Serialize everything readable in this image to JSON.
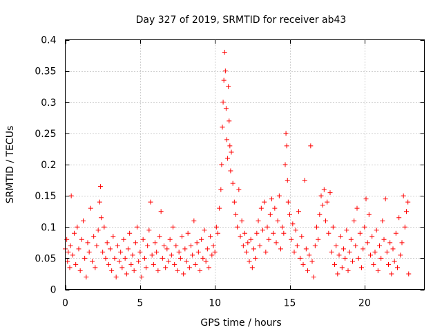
{
  "chart_data": {
    "type": "scatter",
    "title": "Day 327 of 2019, SRMTID for receiver ab43",
    "xlabel": "GPS time / hours",
    "ylabel": "SRMTID / TECUs",
    "xlim": [
      0,
      24
    ],
    "ylim": [
      0,
      0.4
    ],
    "x_ticks": [
      0,
      5,
      10,
      15,
      20
    ],
    "x_tick_labels": [
      "0",
      "5",
      "10",
      "15",
      "20"
    ],
    "y_ticks": [
      0,
      0.05,
      0.1,
      0.15,
      0.2,
      0.25,
      0.3,
      0.35,
      0.4
    ],
    "y_tick_labels": [
      "0",
      "0.05",
      "0.1",
      "0.15",
      "0.2",
      "0.25",
      "0.3",
      "0.35",
      "0.4"
    ],
    "grid": true,
    "marker": "+",
    "color": "#ff0000",
    "series": [
      {
        "name": "SRMTID",
        "points": [
          [
            0.0,
            0.065
          ],
          [
            0.1,
            0.08
          ],
          [
            0.15,
            0.045
          ],
          [
            0.2,
            0.06
          ],
          [
            0.3,
            0.035
          ],
          [
            0.35,
            0.07
          ],
          [
            0.4,
            0.15
          ],
          [
            0.5,
            0.055
          ],
          [
            0.6,
            0.09
          ],
          [
            0.7,
            0.04
          ],
          [
            0.8,
            0.1
          ],
          [
            0.9,
            0.065
          ],
          [
            1.0,
            0.03
          ],
          [
            1.1,
            0.08
          ],
          [
            1.2,
            0.11
          ],
          [
            1.3,
            0.05
          ],
          [
            1.4,
            0.02
          ],
          [
            1.5,
            0.075
          ],
          [
            1.6,
            0.06
          ],
          [
            1.7,
            0.13
          ],
          [
            1.8,
            0.045
          ],
          [
            1.9,
            0.085
          ],
          [
            2.0,
            0.035
          ],
          [
            2.1,
            0.07
          ],
          [
            2.2,
            0.095
          ],
          [
            2.3,
            0.14
          ],
          [
            2.35,
            0.165
          ],
          [
            2.4,
            0.115
          ],
          [
            2.5,
            0.06
          ],
          [
            2.6,
            0.1
          ],
          [
            2.7,
            0.05
          ],
          [
            2.8,
            0.075
          ],
          [
            2.9,
            0.04
          ],
          [
            3.0,
            0.065
          ],
          [
            3.1,
            0.03
          ],
          [
            3.2,
            0.085
          ],
          [
            3.3,
            0.05
          ],
          [
            3.4,
            0.02
          ],
          [
            3.5,
            0.07
          ],
          [
            3.6,
            0.045
          ],
          [
            3.7,
            0.06
          ],
          [
            3.8,
            0.035
          ],
          [
            3.9,
            0.08
          ],
          [
            4.0,
            0.05
          ],
          [
            4.1,
            0.025
          ],
          [
            4.2,
            0.065
          ],
          [
            4.3,
            0.09
          ],
          [
            4.4,
            0.04
          ],
          [
            4.5,
            0.055
          ],
          [
            4.6,
            0.03
          ],
          [
            4.7,
            0.075
          ],
          [
            4.8,
            0.1
          ],
          [
            4.9,
            0.045
          ],
          [
            5.0,
            0.06
          ],
          [
            5.1,
            0.02
          ],
          [
            5.2,
            0.08
          ],
          [
            5.3,
            0.05
          ],
          [
            5.4,
            0.035
          ],
          [
            5.5,
            0.07
          ],
          [
            5.6,
            0.095
          ],
          [
            5.7,
            0.14
          ],
          [
            5.8,
            0.055
          ],
          [
            5.9,
            0.04
          ],
          [
            6.0,
            0.075
          ],
          [
            6.1,
            0.06
          ],
          [
            6.2,
            0.03
          ],
          [
            6.3,
            0.085
          ],
          [
            6.4,
            0.125
          ],
          [
            6.5,
            0.05
          ],
          [
            6.6,
            0.07
          ],
          [
            6.7,
            0.035
          ],
          [
            6.8,
            0.065
          ],
          [
            6.9,
            0.045
          ],
          [
            7.0,
            0.08
          ],
          [
            7.1,
            0.055
          ],
          [
            7.2,
            0.1
          ],
          [
            7.3,
            0.04
          ],
          [
            7.4,
            0.07
          ],
          [
            7.5,
            0.03
          ],
          [
            7.6,
            0.06
          ],
          [
            7.7,
            0.05
          ],
          [
            7.8,
            0.085
          ],
          [
            7.9,
            0.025
          ],
          [
            8.0,
            0.065
          ],
          [
            8.1,
            0.045
          ],
          [
            8.2,
            0.09
          ],
          [
            8.3,
            0.035
          ],
          [
            8.4,
            0.07
          ],
          [
            8.5,
            0.055
          ],
          [
            8.6,
            0.11
          ],
          [
            8.7,
            0.04
          ],
          [
            8.8,
            0.075
          ],
          [
            8.9,
            0.06
          ],
          [
            9.0,
            0.03
          ],
          [
            9.1,
            0.08
          ],
          [
            9.2,
            0.05
          ],
          [
            9.3,
            0.095
          ],
          [
            9.4,
            0.045
          ],
          [
            9.5,
            0.065
          ],
          [
            9.6,
            0.035
          ],
          [
            9.7,
            0.085
          ],
          [
            9.8,
            0.055
          ],
          [
            9.9,
            0.07
          ],
          [
            10.0,
            0.06
          ],
          [
            10.1,
            0.1
          ],
          [
            10.2,
            0.09
          ],
          [
            10.3,
            0.13
          ],
          [
            10.4,
            0.16
          ],
          [
            10.45,
            0.2
          ],
          [
            10.5,
            0.26
          ],
          [
            10.55,
            0.3
          ],
          [
            10.6,
            0.335
          ],
          [
            10.65,
            0.38
          ],
          [
            10.7,
            0.35
          ],
          [
            10.75,
            0.29
          ],
          [
            10.8,
            0.24
          ],
          [
            10.85,
            0.21
          ],
          [
            10.9,
            0.325
          ],
          [
            10.95,
            0.27
          ],
          [
            11.0,
            0.23
          ],
          [
            11.05,
            0.19
          ],
          [
            11.1,
            0.22
          ],
          [
            11.2,
            0.17
          ],
          [
            11.3,
            0.14
          ],
          [
            11.4,
            0.12
          ],
          [
            11.5,
            0.1
          ],
          [
            11.6,
            0.16
          ],
          [
            11.7,
            0.085
          ],
          [
            11.8,
            0.11
          ],
          [
            11.9,
            0.07
          ],
          [
            12.0,
            0.09
          ],
          [
            12.1,
            0.06
          ],
          [
            12.2,
            0.075
          ],
          [
            12.3,
            0.045
          ],
          [
            12.4,
            0.08
          ],
          [
            12.5,
            0.035
          ],
          [
            12.6,
            0.065
          ],
          [
            12.7,
            0.05
          ],
          [
            12.8,
            0.09
          ],
          [
            12.9,
            0.11
          ],
          [
            13.0,
            0.07
          ],
          [
            13.1,
            0.13
          ],
          [
            13.2,
            0.095
          ],
          [
            13.3,
            0.14
          ],
          [
            13.4,
            0.06
          ],
          [
            13.5,
            0.1
          ],
          [
            13.6,
            0.08
          ],
          [
            13.7,
            0.12
          ],
          [
            13.8,
            0.145
          ],
          [
            13.9,
            0.09
          ],
          [
            14.0,
            0.13
          ],
          [
            14.1,
            0.075
          ],
          [
            14.2,
            0.11
          ],
          [
            14.3,
            0.15
          ],
          [
            14.4,
            0.065
          ],
          [
            14.5,
            0.1
          ],
          [
            14.6,
            0.09
          ],
          [
            14.7,
            0.2
          ],
          [
            14.75,
            0.25
          ],
          [
            14.8,
            0.23
          ],
          [
            14.85,
            0.175
          ],
          [
            14.9,
            0.14
          ],
          [
            15.0,
            0.12
          ],
          [
            15.1,
            0.08
          ],
          [
            15.2,
            0.105
          ],
          [
            15.3,
            0.06
          ],
          [
            15.4,
            0.095
          ],
          [
            15.5,
            0.07
          ],
          [
            15.6,
            0.125
          ],
          [
            15.7,
            0.05
          ],
          [
            15.8,
            0.085
          ],
          [
            15.9,
            0.04
          ],
          [
            16.0,
            0.175
          ],
          [
            16.1,
            0.065
          ],
          [
            16.2,
            0.03
          ],
          [
            16.3,
            0.055
          ],
          [
            16.4,
            0.23
          ],
          [
            16.5,
            0.045
          ],
          [
            16.6,
            0.02
          ],
          [
            16.7,
            0.07
          ],
          [
            16.8,
            0.1
          ],
          [
            16.9,
            0.08
          ],
          [
            17.0,
            0.12
          ],
          [
            17.1,
            0.15
          ],
          [
            17.2,
            0.135
          ],
          [
            17.3,
            0.16
          ],
          [
            17.4,
            0.11
          ],
          [
            17.5,
            0.14
          ],
          [
            17.6,
            0.09
          ],
          [
            17.7,
            0.155
          ],
          [
            17.8,
            0.06
          ],
          [
            17.9,
            0.1
          ],
          [
            18.0,
            0.04
          ],
          [
            18.1,
            0.07
          ],
          [
            18.2,
            0.025
          ],
          [
            18.3,
            0.055
          ],
          [
            18.4,
            0.085
          ],
          [
            18.5,
            0.035
          ],
          [
            18.6,
            0.065
          ],
          [
            18.7,
            0.05
          ],
          [
            18.8,
            0.095
          ],
          [
            18.9,
            0.03
          ],
          [
            19.0,
            0.06
          ],
          [
            19.1,
            0.08
          ],
          [
            19.2,
            0.045
          ],
          [
            19.3,
            0.11
          ],
          [
            19.4,
            0.07
          ],
          [
            19.5,
            0.13
          ],
          [
            19.6,
            0.05
          ],
          [
            19.7,
            0.09
          ],
          [
            19.8,
            0.035
          ],
          [
            19.9,
            0.065
          ],
          [
            20.0,
            0.1
          ],
          [
            20.1,
            0.145
          ],
          [
            20.2,
            0.075
          ],
          [
            20.3,
            0.12
          ],
          [
            20.4,
            0.055
          ],
          [
            20.5,
            0.085
          ],
          [
            20.6,
            0.04
          ],
          [
            20.7,
            0.06
          ],
          [
            20.8,
            0.095
          ],
          [
            20.9,
            0.03
          ],
          [
            21.0,
            0.07
          ],
          [
            21.1,
            0.05
          ],
          [
            21.2,
            0.11
          ],
          [
            21.3,
            0.08
          ],
          [
            21.4,
            0.145
          ],
          [
            21.5,
            0.06
          ],
          [
            21.6,
            0.04
          ],
          [
            21.7,
            0.075
          ],
          [
            21.8,
            0.025
          ],
          [
            21.9,
            0.065
          ],
          [
            22.0,
            0.045
          ],
          [
            22.1,
            0.09
          ],
          [
            22.2,
            0.035
          ],
          [
            22.3,
            0.115
          ],
          [
            22.4,
            0.055
          ],
          [
            22.5,
            0.075
          ],
          [
            22.6,
            0.15
          ],
          [
            22.7,
            0.1
          ],
          [
            22.8,
            0.125
          ],
          [
            22.9,
            0.14
          ],
          [
            22.95,
            0.025
          ]
        ]
      }
    ]
  }
}
